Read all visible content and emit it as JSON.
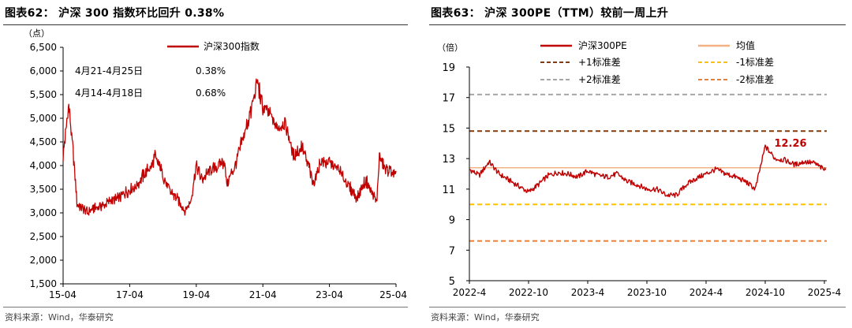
{
  "left": {
    "title": "图表62： 沪深 300 指数环比回升 0.38%",
    "source": "资料来源：Wind，华泰研究",
    "colors": {
      "line": "#c00000"
    },
    "chart_data": {
      "type": "line",
      "y_unit": "（点）",
      "ylim": [
        1500,
        6500
      ],
      "y_ticks": [
        "1,500",
        "2,000",
        "2,500",
        "3,000",
        "3,500",
        "4,000",
        "4,500",
        "5,000",
        "5,500",
        "6,000",
        "6,500"
      ],
      "x_ticks": [
        "15-04",
        "17-04",
        "19-04",
        "21-04",
        "23-04",
        "25-04"
      ],
      "legend_position": "top-center",
      "series": [
        {
          "name": "沪深300指数",
          "x": [
            "15-04",
            "15-06",
            "15-08",
            "15-09",
            "16-01",
            "16-03",
            "16-06",
            "16-09",
            "16-12",
            "17-03",
            "17-06",
            "17-09",
            "17-12",
            "18-01",
            "18-03",
            "18-06",
            "18-09",
            "18-12",
            "19-02",
            "19-04",
            "19-06",
            "19-09",
            "19-12",
            "20-02",
            "20-03",
            "20-06",
            "20-09",
            "20-12",
            "21-02",
            "21-04",
            "21-06",
            "21-09",
            "21-12",
            "22-03",
            "22-06",
            "22-09",
            "22-10",
            "23-01",
            "23-04",
            "23-07",
            "23-10",
            "24-01",
            "24-02",
            "24-05",
            "24-08",
            "24-09",
            "24-10",
            "24-12",
            "25-02",
            "25-04"
          ],
          "values": [
            4200,
            5300,
            4000,
            3200,
            3000,
            3100,
            3150,
            3250,
            3300,
            3450,
            3550,
            3800,
            4000,
            4200,
            3950,
            3500,
            3300,
            3050,
            3250,
            4000,
            3700,
            3900,
            4000,
            4100,
            3600,
            4000,
            4600,
            5200,
            5800,
            5200,
            5150,
            4800,
            4900,
            4200,
            4400,
            3900,
            3600,
            4100,
            4050,
            3950,
            3650,
            3400,
            3300,
            3700,
            3350,
            3200,
            4200,
            3900,
            3900,
            3770
          ]
        }
      ],
      "annotations": [
        {
          "label": "4月21-4月25日",
          "value": "0.38%"
        },
        {
          "label": "4月14-4月18日",
          "value": "0.68%"
        }
      ]
    }
  },
  "right": {
    "title": "图表63： 沪深 300PE（TTM）较前一周上升",
    "source": "资料来源：Wind，华泰研究",
    "chart_data": {
      "type": "line",
      "y_unit": "（倍）",
      "ylim": [
        5,
        19
      ],
      "y_ticks": [
        "5",
        "7",
        "9",
        "11",
        "13",
        "15",
        "17",
        "19"
      ],
      "x_ticks": [
        "2022-4",
        "2022-10",
        "2023-4",
        "2023-10",
        "2024-4",
        "2024-10",
        "2025-4"
      ],
      "end_label": "12.26",
      "legend_position": "top",
      "legend": [
        {
          "name": "沪深300PE",
          "color": "#c00000",
          "style": "solid"
        },
        {
          "name": "均值",
          "color": "#f4b183",
          "style": "solid"
        },
        {
          "name": "+1标准差",
          "color": "#843c0c",
          "style": "dashed"
        },
        {
          "name": "-1标准差",
          "color": "#ffc000",
          "style": "dashed"
        },
        {
          "name": "+2标准差",
          "color": "#a6a6a6",
          "style": "dashed"
        },
        {
          "name": "-2标准差",
          "color": "#ed7d31",
          "style": "dashed"
        }
      ],
      "reference_lines": {
        "均值": 12.4,
        "+1标准差": 14.8,
        "-1标准差": 10.0,
        "+2标准差": 17.2,
        "-2标准差": 7.6
      },
      "series": [
        {
          "name": "沪深300PE",
          "x": [
            "2022-04",
            "2022-05",
            "2022-06",
            "2022-07",
            "2022-08",
            "2022-09",
            "2022-10",
            "2022-11",
            "2022-12",
            "2023-01",
            "2023-02",
            "2023-03",
            "2023-04",
            "2023-05",
            "2023-06",
            "2023-07",
            "2023-08",
            "2023-09",
            "2023-10",
            "2023-11",
            "2023-12",
            "2024-01",
            "2024-02",
            "2024-03",
            "2024-04",
            "2024-05",
            "2024-06",
            "2024-07",
            "2024-08",
            "2024-09",
            "2024-10",
            "2024-11",
            "2024-12",
            "2025-01",
            "2025-02",
            "2025-03",
            "2025-04"
          ],
          "values": [
            12.3,
            11.9,
            12.8,
            12.0,
            11.6,
            11.2,
            10.8,
            11.3,
            11.9,
            12.1,
            12.0,
            11.8,
            12.2,
            11.9,
            11.8,
            12.0,
            11.5,
            11.3,
            11.0,
            11.0,
            10.6,
            10.6,
            11.3,
            11.7,
            12.0,
            12.3,
            12.0,
            11.8,
            11.5,
            11.0,
            13.8,
            13.0,
            12.9,
            12.6,
            12.8,
            12.7,
            12.26
          ]
        }
      ]
    }
  }
}
